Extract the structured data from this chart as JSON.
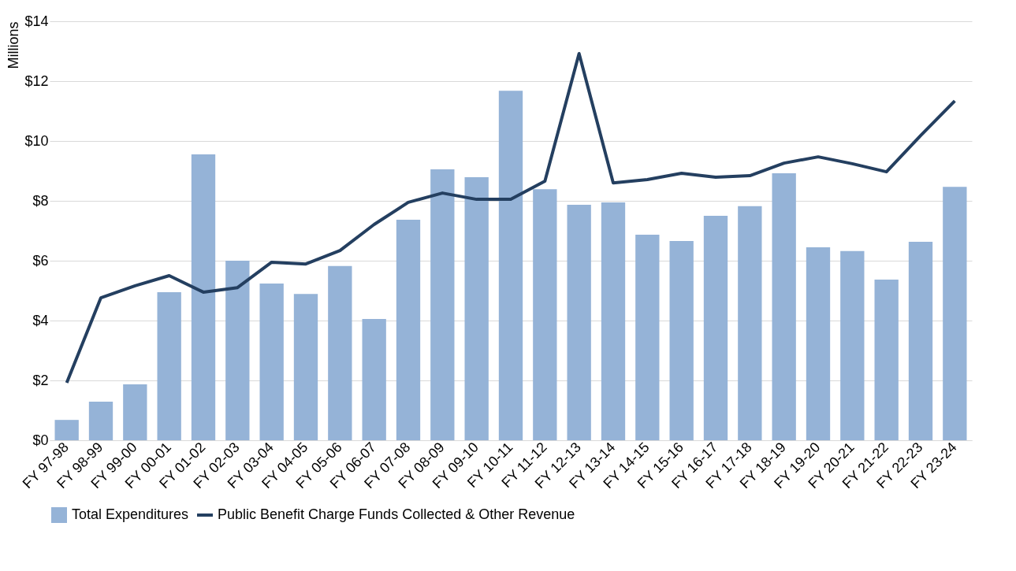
{
  "chart_data": {
    "type": "bar",
    "ylabel": "Millions",
    "categories": [
      "FY 97-98",
      "FY 98-99",
      "FY 99-00",
      "FY 00-01",
      "FY 01-02",
      "FY 02-03",
      "FY 03-04",
      "FY 04-05",
      "FY 05-06",
      "FY 06-07",
      "FY 07-08",
      "FY 08-09",
      "FY 09-10",
      "FY 10-11",
      "FY 11-12",
      "FY 12-13",
      "FY 13-14",
      "FY 14-15",
      "FY 15-16",
      "FY 16-17",
      "FY 17-18",
      "FY 18-19",
      "FY 19-20",
      "FY 20-21",
      "FY 21-22",
      "FY 22-23",
      "FY 23-24"
    ],
    "series": [
      {
        "name": "Total Expenditures",
        "color": "#95b3d7",
        "values": [
          0.68,
          1.29,
          1.87,
          4.95,
          9.55,
          6.0,
          5.24,
          4.89,
          5.82,
          4.05,
          7.37,
          9.05,
          8.79,
          11.68,
          8.39,
          7.87,
          7.95,
          6.87,
          6.66,
          7.5,
          7.82,
          8.92,
          6.45,
          6.32,
          5.37,
          6.63,
          8.47
        ]
      },
      {
        "name": "Public Benefit Charge Funds Collected & Other Revenue",
        "type": "line",
        "color": "#243f60",
        "values": [
          1.92,
          4.76,
          5.16,
          5.5,
          4.95,
          5.1,
          5.95,
          5.89,
          6.34,
          7.21,
          7.95,
          8.26,
          8.05,
          8.05,
          8.66,
          12.92,
          8.6,
          8.71,
          8.92,
          8.79,
          8.84,
          9.26,
          9.47,
          9.24,
          8.97,
          10.18,
          11.34
        ]
      }
    ],
    "ylim": [
      0,
      14
    ],
    "yticks": [
      {
        "value": 0,
        "label": "$0"
      },
      {
        "value": 2,
        "label": "$2"
      },
      {
        "value": 4,
        "label": "$4"
      },
      {
        "value": 6,
        "label": "$6"
      },
      {
        "value": 8,
        "label": "$8"
      },
      {
        "value": 10,
        "label": "$10"
      },
      {
        "value": 12,
        "label": "$12"
      },
      {
        "value": 14,
        "label": "$14"
      }
    ],
    "grid": "y",
    "legend": "bottom",
    "marker": "none",
    "line_style": "solid"
  }
}
